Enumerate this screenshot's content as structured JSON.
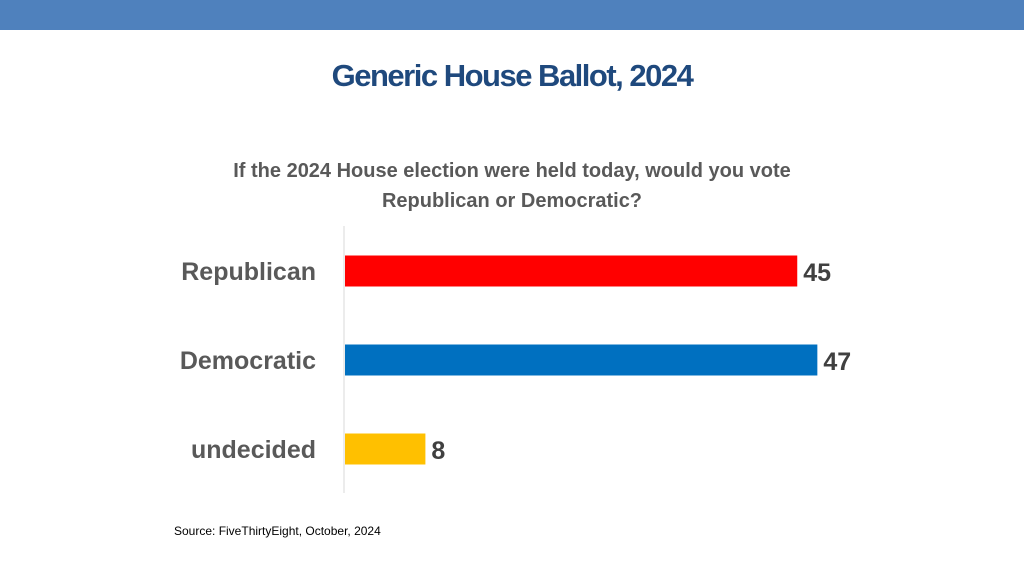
{
  "slide": {
    "title": "Generic House Ballot, 2024",
    "source": "Source: FiveThirtyEight, October, 2024"
  },
  "colors": {
    "top_band": "#4f81bd",
    "title": "#1f497d",
    "label_text": "#595959",
    "value_text": "#404040",
    "axis_line": "#d9d9d9"
  },
  "chart_data": {
    "type": "bar",
    "orientation": "horizontal",
    "title": "If the 2024 House election were held today, would you vote Republican or Democratic?",
    "categories": [
      "Republican",
      "Democratic",
      "undecided"
    ],
    "values": [
      45,
      47,
      8
    ],
    "colors": [
      "#ff0000",
      "#0070c0",
      "#ffc000"
    ],
    "xlim": [
      0,
      50
    ],
    "grid": false,
    "legend": "none",
    "data_labels": true
  }
}
